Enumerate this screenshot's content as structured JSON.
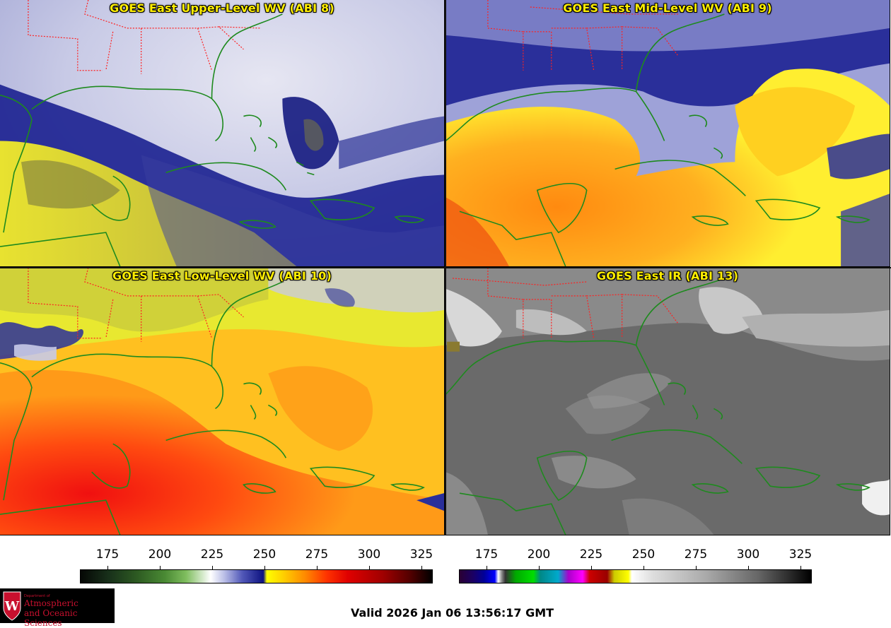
{
  "panels": [
    {
      "id": "upper",
      "title": "GOES East Upper-Level WV (ABI 8)"
    },
    {
      "id": "mid",
      "title": "GOES East Mid-Level WV (ABI 9)"
    },
    {
      "id": "low",
      "title": "GOES East Low-Level WV (ABI 10)"
    },
    {
      "id": "ir",
      "title": "GOES East IR (ABI 13)"
    }
  ],
  "colorbars": {
    "wv": {
      "ticks": [
        "175",
        "200",
        "225",
        "250",
        "275",
        "300",
        "325"
      ]
    },
    "ir": {
      "ticks": [
        "175",
        "200",
        "225",
        "250",
        "275",
        "300",
        "325"
      ]
    }
  },
  "logo": {
    "dept": "Department of",
    "line1": "Atmospheric",
    "line2": "and Oceanic Sciences",
    "shield_letter": "W"
  },
  "footer": {
    "valid_time": "Valid 2026 Jan 06 13:56:17 GMT"
  },
  "colors": {
    "title": "#ffee00",
    "coastline": "#1e8a1e",
    "state_borders": "#ff2020",
    "logo_red": "#c8102e"
  }
}
